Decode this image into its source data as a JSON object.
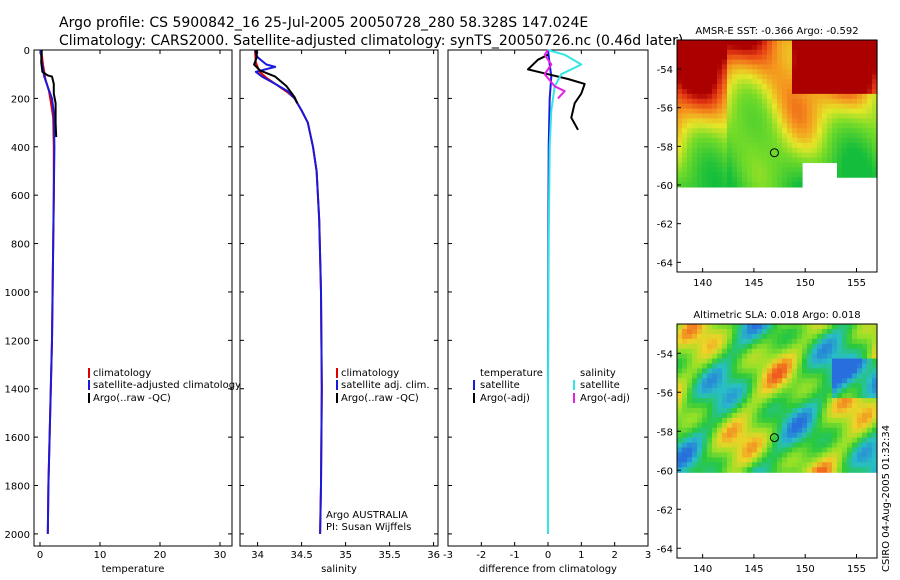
{
  "title": {
    "line1": "Argo profile: CS 5900842_16 25-Jul-2005 20050728_280 58.328S 147.024E",
    "line2": "Climatology: CARS2000. Satellite-adjusted climatology: synTS_20050726.nc (0.46d later)"
  },
  "colors": {
    "red": "#e00000",
    "blue": "#1a1adc",
    "black": "#000000",
    "cyan": "#33e6e6",
    "magenta": "#e620e6"
  },
  "chart_data": [
    {
      "type": "line",
      "id": "temperature",
      "xlabel": "temperature",
      "xlim": [
        -1,
        32
      ],
      "ylim": [
        0,
        2050
      ],
      "y_reversed": true,
      "xticks": [
        0,
        10,
        20,
        30
      ],
      "xtick_labels": [
        "0",
        "10",
        "20",
        "30"
      ],
      "yticks": [
        0,
        200,
        400,
        600,
        800,
        1000,
        1200,
        1400,
        1600,
        1800,
        2000
      ],
      "ytick_labels": [
        "0",
        "200",
        "400",
        "600",
        "800",
        "1000",
        "1200",
        "1400",
        "1600",
        "1800",
        "2000"
      ],
      "legend": [
        "climatology",
        "satellite-adjusted climatology",
        "Argo(..raw -QC)"
      ],
      "series": [
        {
          "name": "climatology",
          "color": "red",
          "points": [
            [
              0.2,
              0
            ],
            [
              0.5,
              60
            ],
            [
              0.9,
              120
            ],
            [
              1.5,
              170
            ],
            [
              1.9,
              230
            ],
            [
              2.2,
              280
            ],
            [
              2.3,
              400
            ],
            [
              2.3,
              600
            ],
            [
              2.2,
              800
            ],
            [
              2.1,
              1000
            ],
            [
              2.0,
              1200
            ],
            [
              1.8,
              1400
            ],
            [
              1.6,
              1600
            ],
            [
              1.4,
              1800
            ],
            [
              1.3,
              2000
            ]
          ]
        },
        {
          "name": "satellite-adjusted climatology",
          "color": "blue",
          "points": [
            [
              0.1,
              0
            ],
            [
              0.3,
              50
            ],
            [
              0.7,
              110
            ],
            [
              1.4,
              160
            ],
            [
              2.0,
              200
            ],
            [
              2.3,
              260
            ],
            [
              2.4,
              400
            ],
            [
              2.3,
              600
            ],
            [
              2.2,
              800
            ],
            [
              2.1,
              1000
            ],
            [
              2.0,
              1200
            ],
            [
              1.8,
              1400
            ],
            [
              1.6,
              1600
            ],
            [
              1.4,
              1800
            ],
            [
              1.3,
              2000
            ]
          ]
        },
        {
          "name": "Argo(..raw -QC)",
          "color": "black",
          "points": [
            [
              0.3,
              0
            ],
            [
              0.2,
              50
            ],
            [
              0.4,
              90
            ],
            [
              1.3,
              105
            ],
            [
              2.0,
              110
            ],
            [
              2.3,
              140
            ],
            [
              2.3,
              180
            ],
            [
              2.6,
              220
            ],
            [
              2.6,
              300
            ],
            [
              2.7,
              360
            ]
          ]
        }
      ]
    },
    {
      "type": "line",
      "id": "salinity",
      "xlabel": "salinity",
      "xlim": [
        33.8,
        36.05
      ],
      "ylim": [
        0,
        2050
      ],
      "y_reversed": true,
      "xticks": [
        34,
        34.5,
        35,
        35.5,
        36
      ],
      "xtick_labels": [
        "34",
        "34.5",
        "35",
        "35.5",
        "36"
      ],
      "legend": [
        "climatology",
        "satellite adj. clim.",
        "Argo(..raw -QC)"
      ],
      "annotation": [
        "Argo AUSTRALIA",
        "PI: Susan Wijffels"
      ],
      "series": [
        {
          "name": "climatology",
          "color": "red",
          "points": [
            [
              33.97,
              0
            ],
            [
              33.98,
              50
            ],
            [
              34.02,
              90
            ],
            [
              34.1,
              115
            ],
            [
              34.22,
              145
            ],
            [
              34.34,
              175
            ],
            [
              34.42,
              200
            ],
            [
              34.5,
              250
            ],
            [
              34.57,
              300
            ],
            [
              34.63,
              400
            ],
            [
              34.67,
              500
            ],
            [
              34.7,
              700
            ],
            [
              34.72,
              1000
            ],
            [
              34.73,
              1400
            ],
            [
              34.72,
              1800
            ],
            [
              34.71,
              2000
            ]
          ]
        },
        {
          "name": "satellite adj. clim.",
          "color": "blue",
          "points": [
            [
              33.97,
              0
            ],
            [
              34.0,
              30
            ],
            [
              34.1,
              60
            ],
            [
              34.2,
              70
            ],
            [
              33.98,
              90
            ],
            [
              34.05,
              110
            ],
            [
              34.2,
              140
            ],
            [
              34.34,
              170
            ],
            [
              34.42,
              200
            ],
            [
              34.5,
              250
            ],
            [
              34.57,
              300
            ],
            [
              34.63,
              400
            ],
            [
              34.67,
              500
            ],
            [
              34.7,
              700
            ],
            [
              34.72,
              1000
            ],
            [
              34.73,
              1400
            ],
            [
              34.72,
              1800
            ],
            [
              34.71,
              2000
            ]
          ]
        },
        {
          "name": "Argo(..raw -QC)",
          "color": "black",
          "points": [
            [
              33.98,
              0
            ],
            [
              33.99,
              30
            ],
            [
              33.96,
              60
            ],
            [
              34.03,
              85
            ],
            [
              34.2,
              110
            ],
            [
              34.33,
              150
            ],
            [
              34.42,
              195
            ],
            [
              34.45,
              220
            ]
          ]
        }
      ]
    },
    {
      "type": "line",
      "id": "difference",
      "xlabel": "difference from climatology",
      "xlim": [
        -3,
        3
      ],
      "ylim": [
        0,
        2050
      ],
      "y_reversed": true,
      "xticks": [
        -3,
        -2,
        -1,
        0,
        1,
        2,
        3
      ],
      "xtick_labels": [
        "-3",
        "-2",
        "-1",
        "0",
        "1",
        "2",
        "3"
      ],
      "legend_left": [
        "temperature",
        "satellite",
        "Argo(-adj)"
      ],
      "legend_right": [
        "salinity",
        "satellite",
        "Argo(-adj)"
      ],
      "series": [
        {
          "name": "temperature satellite",
          "color": "blue",
          "points": [
            [
              0.0,
              0
            ],
            [
              0.05,
              60
            ],
            [
              0.1,
              110
            ],
            [
              0.05,
              200
            ],
            [
              0.02,
              400
            ],
            [
              0.01,
              800
            ],
            [
              0.0,
              1400
            ],
            [
              0.0,
              2000
            ]
          ]
        },
        {
          "name": "temperature Argo(-adj)",
          "color": "black",
          "points": [
            [
              0.0,
              20
            ],
            [
              -0.3,
              40
            ],
            [
              -0.6,
              80
            ],
            [
              0.0,
              100
            ],
            [
              0.6,
              120
            ],
            [
              1.1,
              140
            ],
            [
              1.0,
              180
            ],
            [
              0.8,
              220
            ],
            [
              0.7,
              280
            ],
            [
              0.9,
              330
            ]
          ]
        },
        {
          "name": "salinity satellite",
          "color": "cyan",
          "points": [
            [
              0.0,
              0
            ],
            [
              0.5,
              20
            ],
            [
              1.0,
              60
            ],
            [
              0.4,
              100
            ],
            [
              0.2,
              150
            ],
            [
              0.1,
              250
            ],
            [
              0.05,
              400
            ],
            [
              0.02,
              800
            ],
            [
              0.0,
              1400
            ],
            [
              0.0,
              2000
            ]
          ]
        },
        {
          "name": "salinity Argo(-adj)",
          "color": "magenta",
          "points": [
            [
              0.0,
              0
            ],
            [
              -0.1,
              20
            ],
            [
              0.1,
              60
            ],
            [
              -0.1,
              100
            ],
            [
              0.2,
              150
            ],
            [
              0.5,
              170
            ],
            [
              0.3,
              200
            ]
          ]
        }
      ]
    },
    {
      "type": "heatmap",
      "id": "sst",
      "title": "AMSR-E SST: -0.366 Argo: -0.592",
      "xlim": [
        137.5,
        157
      ],
      "ylim": [
        -64.5,
        -52.5
      ],
      "xticks": [
        140,
        145,
        150,
        155
      ],
      "xtick_labels": [
        "140",
        "145",
        "150",
        "155"
      ],
      "yticks": [
        -54,
        -56,
        -58,
        -60,
        -62,
        -64
      ],
      "ytick_labels": [
        "-54",
        "-56",
        "-58",
        "-60",
        "-62",
        "-64"
      ],
      "marker": {
        "lon": 147.0,
        "lat": -58.33
      }
    },
    {
      "type": "heatmap",
      "id": "sla",
      "title": "Altimetric SLA: 0.018 Argo: 0.018",
      "xlim": [
        137.5,
        157
      ],
      "ylim": [
        -64.5,
        -52.5
      ],
      "xticks": [
        140,
        145,
        150,
        155
      ],
      "xtick_labels": [
        "140",
        "145",
        "150",
        "155"
      ],
      "yticks": [
        -54,
        -56,
        -58,
        -60,
        -62,
        -64
      ],
      "ytick_labels": [
        "-54",
        "-56",
        "-58",
        "-60",
        "-62",
        "-64"
      ],
      "marker": {
        "lon": 147.0,
        "lat": -58.33
      }
    }
  ],
  "stamp": "CSIRO 04-Aug-2005 01:32:34"
}
